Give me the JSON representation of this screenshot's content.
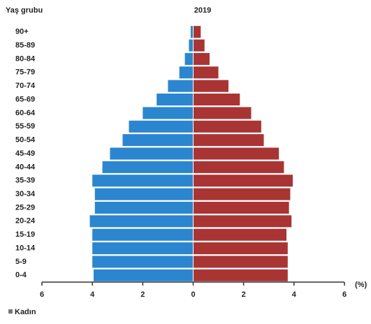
{
  "chart_data": {
    "type": "pyramid",
    "title": "2019",
    "y_axis_label": "Yaş grubu",
    "x_axis_label": "(%)",
    "categories": [
      "90+",
      "85-89",
      "80-84",
      "75-79",
      "70-74",
      "65-69",
      "60-64",
      "55-59",
      "50-54",
      "45-49",
      "40-44",
      "35-39",
      "30-34",
      "25-29",
      "20-24",
      "15-19",
      "10-14",
      "5-9",
      "0-4"
    ],
    "series": [
      {
        "name": "Kadın",
        "side": "left",
        "color": "#2b86cf",
        "values": [
          0.1,
          0.17,
          0.33,
          0.55,
          1.0,
          1.45,
          2.0,
          2.55,
          2.8,
          3.3,
          3.6,
          4.0,
          3.9,
          3.9,
          4.1,
          4.0,
          4.0,
          4.0,
          3.95
        ]
      },
      {
        "side": "right",
        "color": "#a93434",
        "values": [
          0.3,
          0.45,
          0.65,
          1.0,
          1.4,
          1.85,
          2.3,
          2.7,
          2.8,
          3.4,
          3.6,
          3.95,
          3.85,
          3.8,
          3.9,
          3.7,
          3.75,
          3.75,
          3.75
        ]
      }
    ],
    "xlim": [
      -6,
      6
    ],
    "xticks": [
      {
        "value": -6,
        "label": "6"
      },
      {
        "value": -4,
        "label": "4"
      },
      {
        "value": -2,
        "label": "2"
      },
      0,
      2,
      4,
      6
    ],
    "legend": "bottom-left"
  }
}
